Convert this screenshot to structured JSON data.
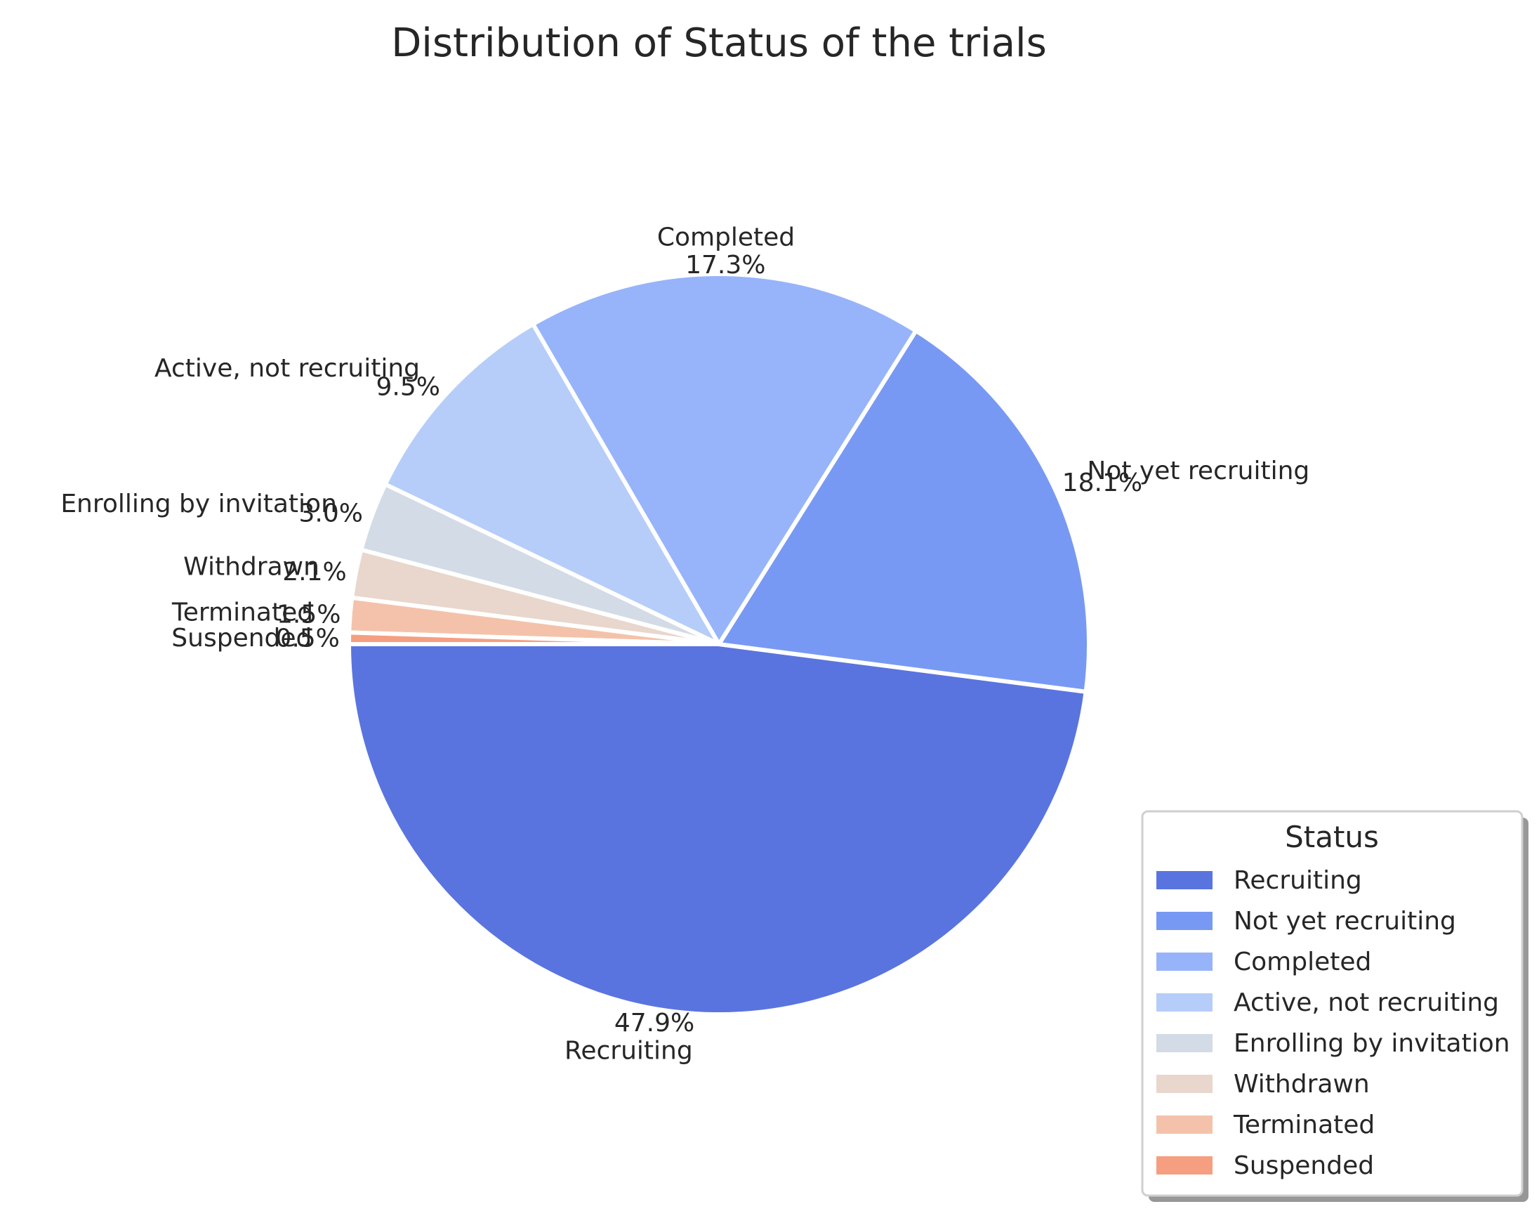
{
  "chart_data": {
    "type": "pie",
    "title": "Distribution of Status of the trials",
    "categories": [
      "Recruiting",
      "Not yet recruiting",
      "Completed",
      "Active, not recruiting",
      "Enrolling by invitation",
      "Withdrawn",
      "Terminated",
      "Suspended"
    ],
    "values": [
      47.9,
      18.1,
      17.3,
      9.5,
      3.0,
      2.1,
      1.5,
      0.5
    ],
    "value_labels": [
      "47.9%",
      "18.1%",
      "17.3%",
      "9.5%",
      "3.0%",
      "2.1%",
      "1.5%",
      "0.5%"
    ],
    "colors": [
      "#5a74df",
      "#7899f3",
      "#97b4fa",
      "#b5cdf8",
      "#d3dbe6",
      "#e9d6cc",
      "#f4c2aa",
      "#f59f80"
    ],
    "start_angle_deg": 180,
    "direction": "counterclockwise",
    "legend": {
      "title": "Status",
      "placement": "lower-right",
      "entries": [
        "Recruiting",
        "Not yet recruiting",
        "Completed",
        "Active, not recruiting",
        "Enrolling by invitation",
        "Withdrawn",
        "Terminated",
        "Suspended"
      ]
    }
  }
}
